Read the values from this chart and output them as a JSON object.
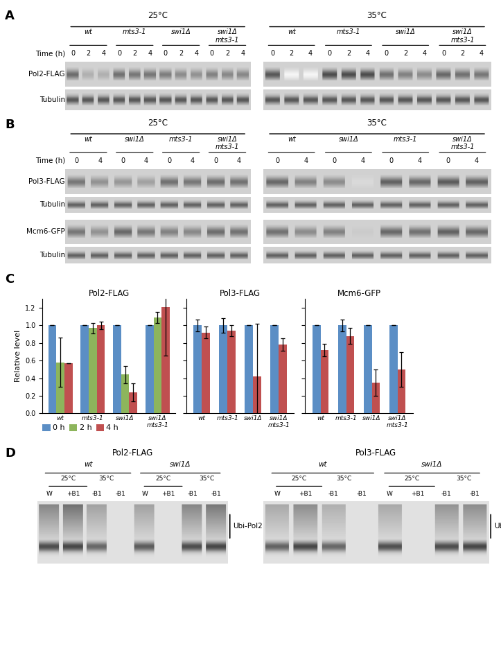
{
  "panel_C": {
    "title_pol2": "Pol2-FLAG",
    "title_pol3": "Pol3-FLAG",
    "title_mcm6": "Mcm6-GFP",
    "cats_pol2": [
      "wt",
      "mts3-1",
      "swi1Δ",
      "swi1Δ\nmts3-1"
    ],
    "cats_pol3": [
      "wt",
      "mts3-1",
      "swi1Δ",
      "swi1Δ\nmts3-1"
    ],
    "cats_mcm6": [
      "wt",
      "mts3-1",
      "swi1Δ",
      "swi1Δ\nmts3-1"
    ],
    "pol2_0h": [
      1.0,
      1.0,
      1.0,
      1.0
    ],
    "pol2_2h": [
      0.58,
      0.97,
      0.44,
      1.09
    ],
    "pol2_4h": [
      0.57,
      1.0,
      0.24,
      1.21
    ],
    "pol2_err_0h": [
      0.0,
      0.0,
      0.0,
      0.0
    ],
    "pol2_err_2h": [
      0.28,
      0.06,
      0.1,
      0.06
    ],
    "pol2_err_4h": [
      0.0,
      0.04,
      0.1,
      0.55
    ],
    "pol3_0h": [
      1.0,
      1.0,
      1.0,
      1.0
    ],
    "pol3_4h": [
      0.92,
      0.94,
      0.42,
      0.78
    ],
    "pol3_err_0h": [
      0.07,
      0.08,
      0.0,
      0.0
    ],
    "pol3_err_4h": [
      0.07,
      0.06,
      0.6,
      0.07
    ],
    "mcm6_0h": [
      1.0,
      1.0,
      1.0,
      1.0
    ],
    "mcm6_4h": [
      0.72,
      0.88,
      0.35,
      0.5
    ],
    "mcm6_err_0h": [
      0.0,
      0.07,
      0.0,
      0.0
    ],
    "mcm6_err_4h": [
      0.07,
      0.09,
      0.15,
      0.2
    ],
    "color_0h": "#5b8ec5",
    "color_2h": "#8db55c",
    "color_4h": "#c05050",
    "ylabel": "Relative level",
    "ylim": [
      0,
      1.3
    ]
  }
}
